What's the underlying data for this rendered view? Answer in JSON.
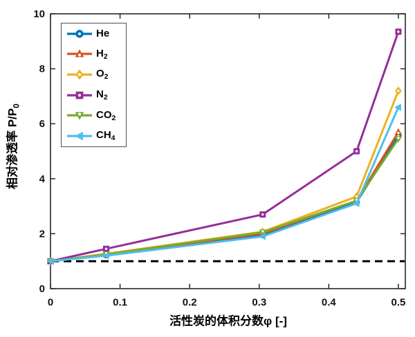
{
  "chart_data": {
    "type": "line",
    "title": "",
    "xlabel": "活性炭的体积分数φ [-]",
    "ylabel_base": "相对渗透率 P/P",
    "ylabel_sub": "0",
    "x": [
      0,
      0.08,
      0.305,
      0.44,
      0.5
    ],
    "series": [
      {
        "label_base": "He",
        "label_sub": "",
        "color": "#0072BD",
        "marker": "circle",
        "hollow": true,
        "values": [
          1.0,
          1.22,
          1.95,
          3.15,
          5.55
        ]
      },
      {
        "label_base": "H",
        "label_sub": "2",
        "color": "#D95319",
        "marker": "triangle-up",
        "hollow": true,
        "values": [
          1.0,
          1.25,
          2.0,
          3.2,
          5.7
        ]
      },
      {
        "label_base": "O",
        "label_sub": "2",
        "color": "#EDB120",
        "marker": "diamond",
        "hollow": true,
        "values": [
          1.0,
          1.27,
          2.07,
          3.35,
          7.2
        ]
      },
      {
        "label_base": "N",
        "label_sub": "2",
        "color": "#962D98",
        "marker": "square",
        "hollow": true,
        "values": [
          1.0,
          1.45,
          2.7,
          5.0,
          9.35
        ]
      },
      {
        "label_base": "CO",
        "label_sub": "2",
        "color": "#77AC30",
        "marker": "triangle-down",
        "hollow": true,
        "values": [
          1.0,
          1.25,
          2.05,
          3.2,
          5.45
        ]
      },
      {
        "label_base": "CH",
        "label_sub": "4",
        "color": "#4DBEEE",
        "marker": "triangle-left",
        "hollow": false,
        "values": [
          1.0,
          1.2,
          1.9,
          3.1,
          6.6
        ]
      }
    ],
    "xlim": [
      0,
      0.51
    ],
    "ylim": [
      0,
      10
    ],
    "xticks": [
      0,
      0.1,
      0.2,
      0.3,
      0.4,
      0.5
    ],
    "xtick_labels": [
      "0",
      "0.1",
      "0.2",
      "0.3",
      "0.4",
      "0.5"
    ],
    "yticks": [
      0,
      2,
      4,
      6,
      8,
      10
    ],
    "ytick_labels": [
      "0",
      "2",
      "4",
      "6",
      "8",
      "10"
    ],
    "reference_line": {
      "y": 1,
      "style": "dashed",
      "color": "#000000"
    },
    "legend_position": "top-left",
    "grid": false,
    "axis_color": "#262626",
    "tick_label_color": "#111111"
  }
}
